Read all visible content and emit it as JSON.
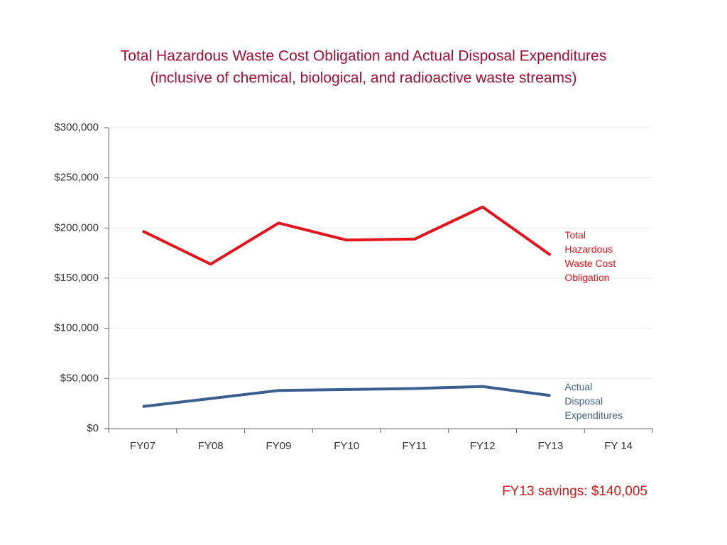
{
  "chart_data": {
    "type": "line",
    "title": "Total Hazardous Waste Cost Obligation and Actual Disposal Expenditures",
    "subtitle": "(inclusive of chemical, biological, and radioactive waste streams)",
    "annotation": "FY13 savings: $140,005",
    "categories": [
      "FY07",
      "FY08",
      "FY09",
      "FY10",
      "FY11",
      "FY12",
      "FY13",
      "FY 14"
    ],
    "series": [
      {
        "name": "Total Hazardous Waste Cost Obligation",
        "color": "#e3141b",
        "values": [
          197000,
          164000,
          205000,
          188000,
          189000,
          221000,
          173000,
          null
        ]
      },
      {
        "name": "Actual Disposal Expenditures",
        "color": "#3a5f8f",
        "values": [
          22000,
          30000,
          38000,
          39000,
          40000,
          42000,
          33000,
          null
        ]
      }
    ],
    "ylim": [
      0,
      300000
    ],
    "yticks": [
      {
        "value": 0,
        "label": "$0"
      },
      {
        "value": 50000,
        "label": "$50,000"
      },
      {
        "value": 100000,
        "label": "$100,000"
      },
      {
        "value": 150000,
        "label": "$150,000"
      },
      {
        "value": 200000,
        "label": "$200,000"
      },
      {
        "value": 250000,
        "label": "$250,000"
      },
      {
        "value": 300000,
        "label": "$300,000"
      }
    ],
    "grid": true
  }
}
